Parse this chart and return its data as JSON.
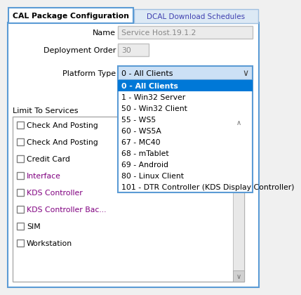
{
  "tab1_text": "CAL Package Configuration",
  "tab2_text": "DCAL Download Schedules",
  "name_label": "Name",
  "name_value": "Service Host.19.1.2",
  "deployment_label": "Deployment Order",
  "deployment_value": "30",
  "platform_label": "Platform Type",
  "platform_selected": "0 - All Clients",
  "dropdown_items": [
    "0 - All Clients",
    "1 - Win32 Server",
    "50 - Win32 Client",
    "55 - WS5",
    "60 - WS5A",
    "67 - MC40",
    "68 - mTablet",
    "69 - Android",
    "80 - Linux Client",
    "101 - DTR Controller (KDS Display Controller)"
  ],
  "limit_label": "Limit To Services",
  "checkboxes": [
    "Check And Posting",
    "Check And Posting",
    "Credit Card",
    "Interface",
    "KDS Controller",
    "KDS Controller Bac...",
    "SIM",
    "Workstation"
  ],
  "bg_color": "#f0f0f0",
  "tab_active_bg": "#ffffff",
  "tab_active_border": "#5b9bd5",
  "tab_inactive_bg": "#dce9f5",
  "tab_text_active": "#000000",
  "tab_text_inactive": "#4040b0",
  "field_bg": "#ebebeb",
  "field_border": "#c0c0c0",
  "dropdown_border": "#5b9bd5",
  "dropdown_header_bg": "#cce0f5",
  "dropdown_selected_bg": "#0078d7",
  "dropdown_selected_fg": "#ffffff",
  "dropdown_item_fg": "#000000",
  "checkbox_area_bg": "#ffffff",
  "checkbox_area_border": "#aaaaaa",
  "scrollbar_bg": "#e8e8e8",
  "scrollbar_arrow": "#707070",
  "label_color": "#000000",
  "interface_color": "#800080",
  "kds_color": "#800080",
  "panel_bg": "#ffffff",
  "panel_border": "#5b9bd5"
}
